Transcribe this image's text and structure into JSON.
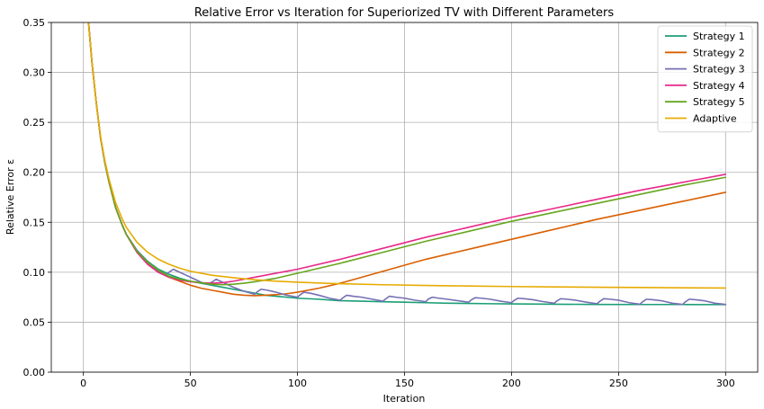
{
  "chart_data": {
    "type": "line",
    "title": "Relative Error vs Iteration for Superiorized TV with Different Parameters",
    "xlabel": "Iteration",
    "ylabel": "Relative Error ε",
    "xlim": [
      -15,
      315
    ],
    "ylim": [
      0,
      0.35
    ],
    "xticks": [
      0,
      50,
      100,
      150,
      200,
      250,
      300
    ],
    "yticks": [
      0.0,
      0.05,
      0.1,
      0.15,
      0.2,
      0.25,
      0.3,
      0.35
    ],
    "xtick_labels": [
      "0",
      "50",
      "100",
      "150",
      "200",
      "250",
      "300"
    ],
    "ytick_labels": [
      "0.00",
      "0.05",
      "0.10",
      "0.15",
      "0.20",
      "0.25",
      "0.30",
      "0.35"
    ],
    "grid": true,
    "legend": "top-right",
    "series": [
      {
        "name": "Strategy 1",
        "color": "#1b9e77",
        "x": [
          2,
          4,
          6,
          8,
          10,
          12,
          15,
          18,
          20,
          25,
          30,
          35,
          40,
          45,
          50,
          55,
          60,
          65,
          70,
          75,
          80,
          85,
          90,
          95,
          100,
          110,
          120,
          130,
          140,
          150,
          160,
          170,
          180,
          190,
          200,
          220,
          240,
          260,
          280,
          300
        ],
        "y": [
          0.36,
          0.31,
          0.27,
          0.235,
          0.21,
          0.19,
          0.165,
          0.148,
          0.138,
          0.122,
          0.111,
          0.103,
          0.098,
          0.094,
          0.091,
          0.089,
          0.087,
          0.085,
          0.083,
          0.081,
          0.079,
          0.077,
          0.076,
          0.075,
          0.074,
          0.073,
          0.0715,
          0.071,
          0.0705,
          0.07,
          0.0695,
          0.069,
          0.0688,
          0.0685,
          0.0683,
          0.068,
          0.0678,
          0.0677,
          0.0677,
          0.0676
        ]
      },
      {
        "name": "Strategy 2",
        "color": "#d95f02",
        "x": [
          2,
          4,
          6,
          8,
          10,
          12,
          15,
          18,
          20,
          25,
          30,
          35,
          40,
          45,
          50,
          55,
          60,
          65,
          70,
          75,
          80,
          85,
          90,
          95,
          100,
          110,
          120,
          140,
          160,
          180,
          200,
          220,
          240,
          260,
          280,
          300
        ],
        "y": [
          0.36,
          0.31,
          0.27,
          0.235,
          0.21,
          0.19,
          0.165,
          0.148,
          0.138,
          0.12,
          0.108,
          0.1,
          0.095,
          0.091,
          0.087,
          0.084,
          0.082,
          0.08,
          0.078,
          0.077,
          0.0765,
          0.077,
          0.0775,
          0.0785,
          0.08,
          0.084,
          0.089,
          0.101,
          0.113,
          0.123,
          0.133,
          0.143,
          0.153,
          0.162,
          0.171,
          0.18
        ]
      },
      {
        "name": "Strategy 3",
        "color": "#7570b3",
        "x": [
          2,
          4,
          6,
          8,
          10,
          12,
          15,
          18,
          20,
          25,
          30,
          35,
          38,
          40,
          42,
          45,
          48,
          50,
          55,
          58,
          60,
          62,
          65,
          70,
          75,
          80,
          81,
          83,
          86,
          90,
          95,
          100,
          101,
          103,
          106,
          110,
          115,
          120,
          121,
          123,
          126,
          130,
          135,
          140,
          141,
          143,
          146,
          150,
          155,
          160,
          161,
          163,
          166,
          170,
          175,
          180,
          181,
          183,
          186,
          190,
          195,
          200,
          201,
          203,
          206,
          210,
          215,
          220,
          221,
          223,
          226,
          230,
          235,
          240,
          241,
          243,
          246,
          250,
          255,
          260,
          261,
          263,
          266,
          270,
          275,
          280,
          281,
          283,
          286,
          290,
          295,
          300
        ],
        "y": [
          0.36,
          0.31,
          0.27,
          0.235,
          0.21,
          0.19,
          0.165,
          0.148,
          0.138,
          0.122,
          0.11,
          0.101,
          0.097,
          0.1,
          0.103,
          0.1,
          0.097,
          0.095,
          0.09,
          0.088,
          0.09,
          0.093,
          0.09,
          0.085,
          0.081,
          0.078,
          0.08,
          0.083,
          0.082,
          0.08,
          0.077,
          0.075,
          0.077,
          0.08,
          0.079,
          0.077,
          0.074,
          0.072,
          0.074,
          0.077,
          0.076,
          0.075,
          0.073,
          0.071,
          0.073,
          0.076,
          0.075,
          0.074,
          0.072,
          0.0705,
          0.073,
          0.075,
          0.074,
          0.073,
          0.0715,
          0.07,
          0.072,
          0.0745,
          0.074,
          0.073,
          0.071,
          0.0695,
          0.0715,
          0.074,
          0.0735,
          0.0725,
          0.0705,
          0.069,
          0.071,
          0.0735,
          0.073,
          0.072,
          0.07,
          0.0685,
          0.0705,
          0.0735,
          0.073,
          0.072,
          0.0695,
          0.068,
          0.07,
          0.073,
          0.0725,
          0.0715,
          0.069,
          0.0678,
          0.07,
          0.073,
          0.0725,
          0.0715,
          0.069,
          0.0678
        ]
      },
      {
        "name": "Strategy 4",
        "color": "#e7298a",
        "x": [
          2,
          4,
          6,
          8,
          10,
          12,
          15,
          18,
          20,
          25,
          30,
          35,
          40,
          45,
          50,
          55,
          60,
          65,
          70,
          75,
          80,
          90,
          100,
          120,
          140,
          160,
          180,
          200,
          220,
          240,
          260,
          280,
          300
        ],
        "y": [
          0.36,
          0.31,
          0.27,
          0.235,
          0.21,
          0.19,
          0.165,
          0.148,
          0.138,
          0.12,
          0.108,
          0.1,
          0.095,
          0.092,
          0.0905,
          0.0895,
          0.089,
          0.0895,
          0.091,
          0.093,
          0.095,
          0.099,
          0.103,
          0.113,
          0.124,
          0.135,
          0.145,
          0.155,
          0.164,
          0.173,
          0.182,
          0.19,
          0.198
        ]
      },
      {
        "name": "Strategy 5",
        "color": "#66a61e",
        "x": [
          2,
          4,
          6,
          8,
          10,
          12,
          15,
          18,
          20,
          25,
          30,
          35,
          40,
          45,
          50,
          55,
          60,
          65,
          70,
          75,
          80,
          90,
          100,
          120,
          140,
          160,
          180,
          200,
          220,
          240,
          260,
          280,
          300
        ],
        "y": [
          0.36,
          0.31,
          0.27,
          0.235,
          0.21,
          0.19,
          0.165,
          0.148,
          0.138,
          0.121,
          0.11,
          0.102,
          0.096,
          0.093,
          0.091,
          0.0895,
          0.088,
          0.0875,
          0.088,
          0.089,
          0.0905,
          0.094,
          0.099,
          0.109,
          0.12,
          0.131,
          0.141,
          0.151,
          0.16,
          0.169,
          0.178,
          0.187,
          0.195
        ]
      },
      {
        "name": "Adaptive",
        "color": "#e6ab02",
        "x": [
          2,
          4,
          6,
          8,
          10,
          12,
          15,
          18,
          20,
          25,
          30,
          35,
          40,
          45,
          50,
          55,
          60,
          70,
          80,
          90,
          100,
          120,
          140,
          160,
          180,
          200,
          220,
          240,
          260,
          280,
          300
        ],
        "y": [
          0.36,
          0.31,
          0.27,
          0.236,
          0.212,
          0.193,
          0.17,
          0.154,
          0.145,
          0.13,
          0.12,
          0.113,
          0.108,
          0.104,
          0.101,
          0.099,
          0.097,
          0.0945,
          0.0925,
          0.091,
          0.09,
          0.0885,
          0.0875,
          0.0868,
          0.0862,
          0.0857,
          0.0853,
          0.085,
          0.0847,
          0.0844,
          0.0842
        ]
      }
    ]
  }
}
